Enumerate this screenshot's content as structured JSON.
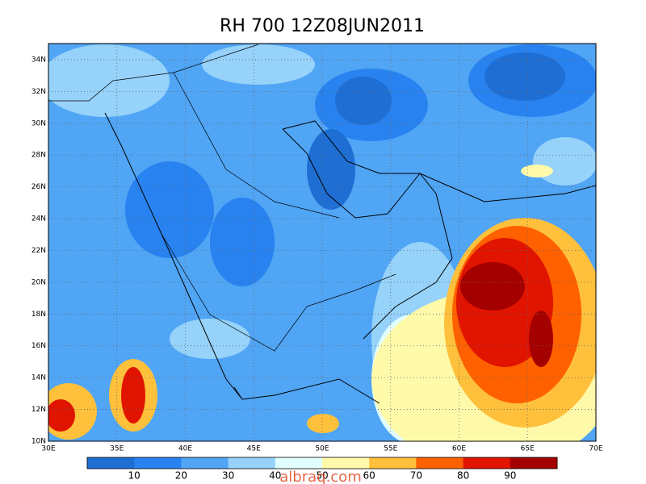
{
  "title": "RH 700 12Z08JUN2011",
  "lat_labels": [
    "10N",
    "12N",
    "14N",
    "16N",
    "18N",
    "20N",
    "22N",
    "24N",
    "26N",
    "28N",
    "30N",
    "32N",
    "34N"
  ],
  "lon_labels": [
    "30E",
    "35E",
    "40E",
    "45E",
    "50E",
    "55E",
    "60E",
    "65E",
    "70E"
  ],
  "colorbar": {
    "labels": [
      10,
      20,
      30,
      40,
      50,
      60,
      70,
      80,
      90
    ],
    "colors": [
      "#1e6ed4",
      "#2882f0",
      "#50a5f5",
      "#96d2fa",
      "#e1ffff",
      "#fffaaa",
      "#ffc03c",
      "#ff6000",
      "#e11400",
      "#a50000"
    ]
  },
  "watermark": "albraq.com"
}
